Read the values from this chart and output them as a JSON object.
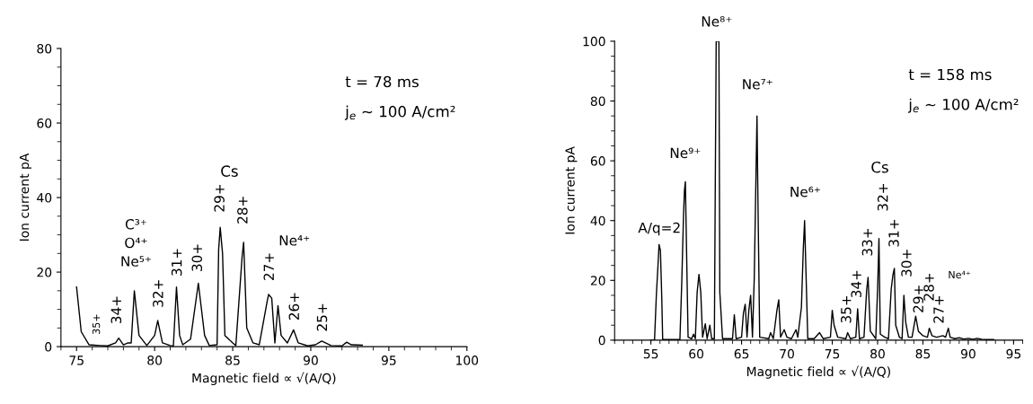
{
  "chart_data": [
    {
      "type": "line",
      "xlabel": "Magnetic field ∝ √(A/Q)",
      "ylabel": "Ion current pA",
      "xlim": [
        74,
        100
      ],
      "xticks": [
        75,
        80,
        85,
        90,
        95,
        100
      ],
      "ylim": [
        0,
        80
      ],
      "yticks": [
        0,
        20,
        40,
        60,
        80
      ],
      "grid": false,
      "legend": false,
      "marker": "none",
      "line_style": "solid",
      "series": [
        {
          "color": "#000000",
          "x": [
            75,
            75.3,
            75.8,
            76.5,
            77,
            77.5,
            77.7,
            78,
            78.3,
            78.5,
            78.7,
            79,
            79.5,
            80,
            80.2,
            80.5,
            81,
            81.2,
            81.4,
            81.6,
            81.8,
            82.3,
            82.8,
            83.2,
            83.5,
            84,
            84.1,
            84.2,
            84.35,
            84.5,
            85,
            85.2,
            85.6,
            85.7,
            85.9,
            86.3,
            86.7,
            87.2,
            87.3,
            87.5,
            87.7,
            87.9,
            88.1,
            88.5,
            88.9,
            89.2,
            89.8,
            90.3,
            90.7,
            91.3,
            92,
            92.3,
            92.6,
            93.3
          ],
          "values": [
            16,
            4,
            0.5,
            0.3,
            0.2,
            1,
            2.3,
            0.5,
            1,
            1,
            15,
            3,
            0.3,
            3,
            7,
            1,
            0.3,
            0.2,
            16,
            3,
            0.5,
            2,
            17,
            3,
            0.3,
            0.5,
            26,
            32,
            25,
            3,
            1,
            0.3,
            24,
            28,
            5,
            1,
            0.5,
            12,
            14,
            13,
            1,
            11,
            3,
            1,
            4.5,
            1,
            0.2,
            0.5,
            1.5,
            0.3,
            0.2,
            1.2,
            0.5,
            0.4
          ]
        }
      ],
      "annotations": [
        "t = 78 ms",
        "j$_{e}$ ~ 100 A/cm²",
        "35+",
        "34+",
        "C³⁺\nO⁴⁺\nNe⁵⁺",
        "32+",
        "31+",
        "30+",
        "Cs",
        "29+",
        "28+",
        "27+",
        "Ne⁴⁺",
        "26+",
        "25+"
      ]
    },
    {
      "type": "line",
      "xlabel": "Magnetic field ∝ √(A/Q)",
      "ylabel": "Ion current pA",
      "xlim": [
        51,
        96
      ],
      "xticks": [
        55,
        60,
        65,
        70,
        75,
        80,
        85,
        90,
        95
      ],
      "ylim": [
        0,
        100
      ],
      "yticks": [
        0,
        20,
        40,
        60,
        80,
        100
      ],
      "grid": false,
      "legend": false,
      "marker": "none",
      "line_style": "solid",
      "series": [
        {
          "color": "#000000",
          "x": [
            55,
            55.4,
            55.6,
            55.8,
            55.9,
            56.05,
            56.2,
            56.3,
            58.2,
            58.4,
            58.6,
            58.7,
            58.8,
            58.95,
            59.1,
            59.5,
            59.7,
            59.9,
            60.1,
            60.3,
            60.5,
            60.7,
            61,
            61.2,
            61.5,
            61.7,
            62,
            62.1,
            62.2,
            62.5,
            62.6,
            62.9,
            64,
            64.2,
            64.4,
            65,
            65.2,
            65.4,
            65.6,
            65.8,
            66,
            66.2,
            66.4,
            66.6,
            66.7,
            66.8,
            67,
            68,
            68.2,
            68.5,
            68.9,
            69.1,
            69.3,
            69.7,
            70,
            70.5,
            71,
            71.2,
            71.6,
            71.8,
            71.95,
            72.1,
            72.3,
            73,
            73.6,
            74,
            74.8,
            75,
            75.2,
            75.6,
            76.5,
            76.7,
            77,
            77.6,
            77.8,
            78,
            78.5,
            78.8,
            78.95,
            79.2,
            79.8,
            80,
            80.1,
            80.15,
            80.3,
            80.8,
            81.2,
            81.5,
            81.7,
            81.85,
            82,
            82.4,
            82.7,
            82.9,
            83.1,
            83.4,
            83.8,
            84.2,
            84.5,
            85,
            85.5,
            85.7,
            86,
            86.5,
            87.2,
            87.5,
            87.8,
            88,
            88.5,
            89,
            89.5,
            90,
            90.5,
            91,
            91.5,
            92,
            92.8
          ],
          "values": [
            0,
            0,
            15,
            26,
            32,
            30,
            14,
            0.2,
            0.2,
            19,
            42,
            50,
            53,
            27,
            1,
            0.5,
            2,
            0.5,
            16,
            22,
            16,
            1,
            5.5,
            0.5,
            5,
            0.5,
            0.5,
            52,
            100,
            100,
            16,
            0.5,
            0.5,
            8.5,
            0.5,
            1,
            9,
            12,
            1,
            10,
            15,
            1,
            21,
            57,
            75,
            48,
            1,
            0.5,
            2.5,
            0.5,
            10,
            13.5,
            1,
            3.5,
            1,
            0.5,
            3.5,
            1,
            11,
            30,
            40,
            23,
            0.5,
            0.5,
            2.5,
            0.5,
            1,
            10,
            5,
            1,
            0.5,
            2.5,
            0.5,
            1,
            10.5,
            0.5,
            1,
            17,
            21,
            3,
            0.5,
            17,
            28,
            34,
            2,
            1,
            0.5,
            17,
            22,
            24,
            5,
            1,
            0.5,
            15,
            6,
            1,
            1,
            8,
            3,
            1.5,
            1,
            4,
            1.5,
            1,
            1.5,
            1,
            4,
            1,
            0.5,
            0.8,
            0.4,
            0.6,
            0.3,
            0.6,
            0.3,
            0.2,
            0.2
          ]
        }
      ],
      "annotations": [
        "t = 158 ms",
        "j$_{e}$ ~ 100 A/cm²",
        "A/q=2",
        "Ne⁹⁺",
        "Ne⁸⁺",
        "Ne⁷⁺",
        "Ne⁶⁺",
        "Cs",
        "35+",
        "34+",
        "33+",
        "32+",
        "31+",
        "30+",
        "29+",
        "28+",
        "27+",
        "Ne⁴⁺"
      ]
    }
  ]
}
